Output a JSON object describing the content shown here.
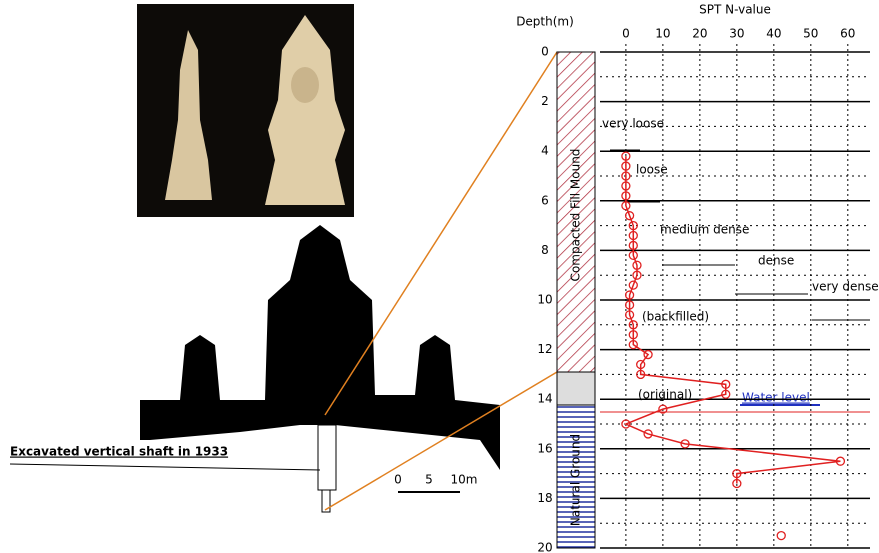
{
  "chart_data": {
    "type": "line",
    "title": "SPT N-value",
    "y_label": "Depth(m)",
    "x": [
      0,
      0,
      0,
      0,
      0,
      0,
      1,
      2,
      2,
      2,
      2,
      3,
      3,
      2,
      1,
      1,
      1,
      2,
      2,
      2,
      6,
      4,
      4,
      27,
      27,
      10,
      0,
      6,
      16,
      58,
      30,
      30,
      null,
      42
    ],
    "values": [
      4.2,
      4.6,
      5,
      5.4,
      5.8,
      6.2,
      6.6,
      7,
      7.4,
      7.8,
      8.2,
      8.6,
      9,
      9.4,
      9.8,
      10.2,
      10.6,
      11,
      11.4,
      11.8,
      12.2,
      12.6,
      13,
      13.4,
      13.8,
      14.4,
      15,
      15.4,
      15.8,
      16.5,
      17,
      17.4,
      null,
      19.5
    ],
    "color": "#e02020",
    "xlim": [
      -7,
      66
    ],
    "ylim": [
      0,
      20
    ],
    "xticks": [
      0,
      10,
      20,
      30,
      40,
      50,
      60
    ],
    "yticks": [
      0,
      2,
      4,
      6,
      8,
      10,
      12,
      14,
      16,
      18,
      20
    ],
    "y_minor_ticks": [
      1,
      3,
      5,
      7,
      9,
      11,
      13,
      15,
      17,
      19
    ],
    "y_inverted": true,
    "grid": true
  },
  "annotations": {
    "very_loose": "very loose",
    "loose": "loose",
    "medium_dense": "medium dense",
    "dense": "dense",
    "very_dense": "very dense",
    "backfilled": "(backfilled)",
    "original": "(original)",
    "water_level": "Water level"
  },
  "columns": {
    "fill": "Compacted Fill Mound",
    "natural": "Natural Ground"
  },
  "shaft_label": "Excavated vertical shaft in 1933",
  "scale": {
    "zero": "0",
    "five": "5",
    "ten": "10m"
  }
}
